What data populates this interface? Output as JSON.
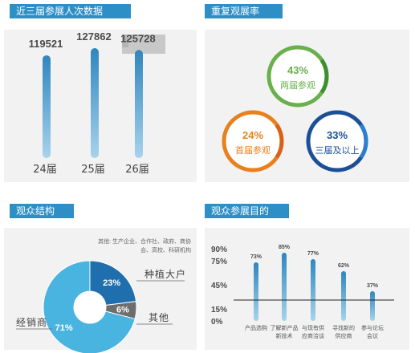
{
  "sections": {
    "attendance": "近三届参展人次数据",
    "repeat": "重复观展率",
    "structure": "观众结构",
    "purpose": "观众参展目的"
  },
  "chart_data": [
    {
      "type": "bar",
      "title": "近三届参展人次数据",
      "categories": [
        "24届",
        "25届",
        "26届"
      ],
      "values": [
        119521,
        127862,
        125728
      ],
      "value_labels": [
        "119521",
        "127862",
        "125728"
      ],
      "ylim": [
        0,
        140000
      ]
    },
    {
      "type": "pie",
      "title": "重复观展率",
      "slices": [
        {
          "label": "两届参观",
          "value": 43,
          "text": "43%",
          "color": "#6ab04c"
        },
        {
          "label": "首届参观",
          "value": 24,
          "text": "24%",
          "color": "#e8801e"
        },
        {
          "label": "三届及以上",
          "value": 33,
          "text": "33%",
          "color": "#1c4f96"
        }
      ]
    },
    {
      "type": "pie",
      "title": "观众结构",
      "note": "其他: 生产企业、合作社、政府、商协会、高校、科研机构",
      "slices": [
        {
          "label": "经销商",
          "value": 71,
          "text": "71%",
          "color": "#49b4e0"
        },
        {
          "label": "种植大户",
          "value": 23,
          "text": "23%",
          "color": "#1f6fae"
        },
        {
          "label": "其他",
          "value": 6,
          "text": "6%",
          "color": "#6d6d6d"
        }
      ]
    },
    {
      "type": "bar",
      "title": "观众参展目的",
      "categories": [
        "产品选购",
        "了解新产品新技术",
        "与现有供应商洽谈",
        "寻找新的供应商",
        "参与论坛会议"
      ],
      "category_lines": [
        [
          "产品选购"
        ],
        [
          "了解新产品",
          "新技术"
        ],
        [
          "与现有供",
          "应商洽谈"
        ],
        [
          "寻找新的",
          "供应商"
        ],
        [
          "参与论坛",
          "会议"
        ]
      ],
      "values": [
        73,
        85,
        77,
        62,
        37
      ],
      "value_labels": [
        "73%",
        "85%",
        "77%",
        "62%",
        "37%"
      ],
      "yticks": [
        "90%",
        "75%",
        "45%",
        "15%",
        "0%"
      ],
      "ylim": [
        0,
        100
      ]
    }
  ]
}
